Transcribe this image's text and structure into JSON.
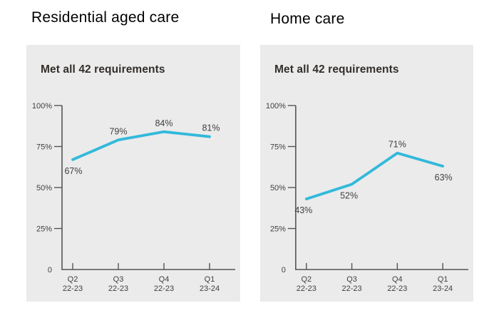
{
  "sections": [
    {
      "heading": "Residential aged care"
    },
    {
      "heading": "Home care"
    }
  ],
  "colors": {
    "page_bg": "#ffffff",
    "panel_bg": "#ebebeb",
    "axis": "#545454",
    "text": "#414042",
    "title": "#322e2b",
    "line": "#32b9db"
  },
  "chart_data": [
    {
      "type": "line",
      "title": "Met all 42 requirements",
      "categories": [
        [
          "Q2",
          "22-23"
        ],
        [
          "Q3",
          "22-23"
        ],
        [
          "Q4",
          "22-23"
        ],
        [
          "Q1",
          "23-24"
        ]
      ],
      "values": [
        67,
        79,
        84,
        81
      ],
      "point_labels": [
        {
          "text": "67%",
          "pos": "below",
          "dx": 1
        },
        {
          "text": "79%",
          "pos": "above",
          "dx": 0
        },
        {
          "text": "84%",
          "pos": "above",
          "dx": 0
        },
        {
          "text": "81%",
          "pos": "above",
          "dx": 2
        }
      ],
      "yticks": [
        {
          "v": 100,
          "label": "100%"
        },
        {
          "v": 75,
          "label": "75%"
        },
        {
          "v": 50,
          "label": "50%"
        },
        {
          "v": 25,
          "label": "25%"
        },
        {
          "v": 0,
          "label": "0"
        }
      ],
      "ylim": [
        0,
        100
      ],
      "grid": false,
      "legend": null,
      "line_color": "#32b9db"
    },
    {
      "type": "line",
      "title": "Met all 42 requirements",
      "categories": [
        [
          "Q2",
          "22-23"
        ],
        [
          "Q3",
          "22-23"
        ],
        [
          "Q4",
          "22-23"
        ],
        [
          "Q1",
          "23-24"
        ]
      ],
      "values": [
        43,
        52,
        71,
        63
      ],
      "point_labels": [
        {
          "text": "43%",
          "pos": "below",
          "dx": -4
        },
        {
          "text": "52%",
          "pos": "below",
          "dx": -4
        },
        {
          "text": "71%",
          "pos": "above",
          "dx": 0
        },
        {
          "text": "63%",
          "pos": "below",
          "dx": 1
        }
      ],
      "yticks": [
        {
          "v": 100,
          "label": "100%"
        },
        {
          "v": 75,
          "label": "75%"
        },
        {
          "v": 50,
          "label": "50%"
        },
        {
          "v": 25,
          "label": "25%"
        },
        {
          "v": 0,
          "label": "0"
        }
      ],
      "ylim": [
        0,
        100
      ],
      "grid": false,
      "legend": null,
      "line_color": "#32b9db"
    }
  ]
}
